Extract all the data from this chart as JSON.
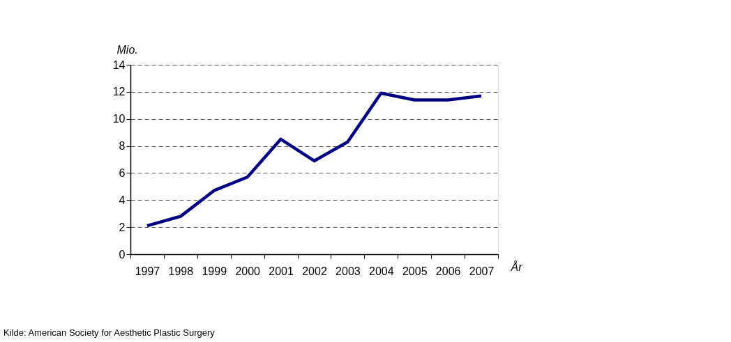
{
  "chart_data": {
    "type": "line",
    "ylabel": "Mio.",
    "xlabel": "År",
    "categories": [
      "1997",
      "1998",
      "1999",
      "2000",
      "2001",
      "2002",
      "2003",
      "2004",
      "2005",
      "2006",
      "2007"
    ],
    "series": [
      {
        "color": "#000080",
        "values": [
          2.1,
          2.8,
          4.7,
          5.7,
          8.5,
          6.9,
          8.3,
          11.9,
          11.4,
          11.4,
          11.7
        ]
      }
    ],
    "ylim": [
      0,
      14
    ],
    "yticks": [
      0,
      2,
      4,
      6,
      8,
      10,
      12,
      14
    ],
    "grid": "y",
    "legend": false,
    "marker": "none",
    "line_style": "solid",
    "annotations": [
      "Kilde: American Society for Aesthetic Plastic Surgery"
    ]
  }
}
